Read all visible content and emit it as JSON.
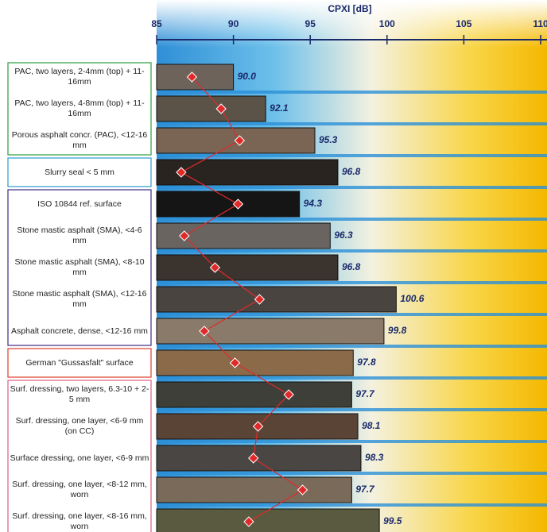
{
  "chart_data": {
    "type": "bar",
    "orientation": "horizontal",
    "xlabel": "CPXI [dB]",
    "categories": [
      "PAC, two layers, 2-4mm (top) + 11-16mm",
      "PAC, two layers, 4-8mm (top) + 11-16mm",
      "Porous asphalt concr. (PAC), <12-16 mm",
      "Slurry seal < 5 mm",
      "ISO 10844 ref. surface",
      "Stone mastic asphalt (SMA), <4-6 mm",
      "Stone mastic asphalt (SMA), <8-10 mm",
      "Stone mastic asphalt (SMA), <12-16 mm",
      "Asphalt concrete, dense, <12-16 mm",
      "German \"Gussasfalt\" surface",
      "Surf. dressing, two layers, 6.3-10 + 2-5 mm",
      "Surf. dressing, one layer, <6-9 mm (on CC)",
      "Surface dressing, one layer, <6-9 mm",
      "Surf. dressing, one layer, <8-12 mm, worn",
      "Surf. dressing, one layer, <8-16 mm, worn"
    ],
    "series": [
      {
        "values": [
          90.0,
          92.1,
          95.3,
          96.8,
          94.3,
          96.3,
          96.8,
          100.6,
          99.8,
          97.8,
          97.7,
          98.1,
          98.3,
          97.7,
          99.5
        ],
        "value_labels": [
          "90.0",
          "92.1",
          "95.3",
          "96.8",
          "94.3",
          "96.3",
          "96.8",
          "100.6",
          "99.8",
          "97.8",
          "97.7",
          "98.1",
          "98.3",
          "97.7",
          "99.5"
        ],
        "colors": [
          "#6d635a",
          "#5b5248",
          "#7a6555",
          "#2a2420",
          "#151515",
          "#6a6460",
          "#3a332e",
          "#4a4440",
          "#8a7a6a",
          "#8a6a48",
          "#3d3f38",
          "#5a4436",
          "#4a4644",
          "#7a6a5a",
          "#5a5a40"
        ]
      },
      {
        "color": "#e02a2a",
        "values": [
          87.3,
          89.2,
          90.4,
          86.6,
          90.3,
          86.8,
          88.8,
          91.7,
          88.1,
          90.1,
          93.6,
          91.6,
          91.3,
          94.5,
          91.0
        ]
      }
    ],
    "xlim": [
      85,
      110
    ],
    "xticks": [
      85,
      90,
      95,
      100,
      105,
      110
    ]
  }
}
